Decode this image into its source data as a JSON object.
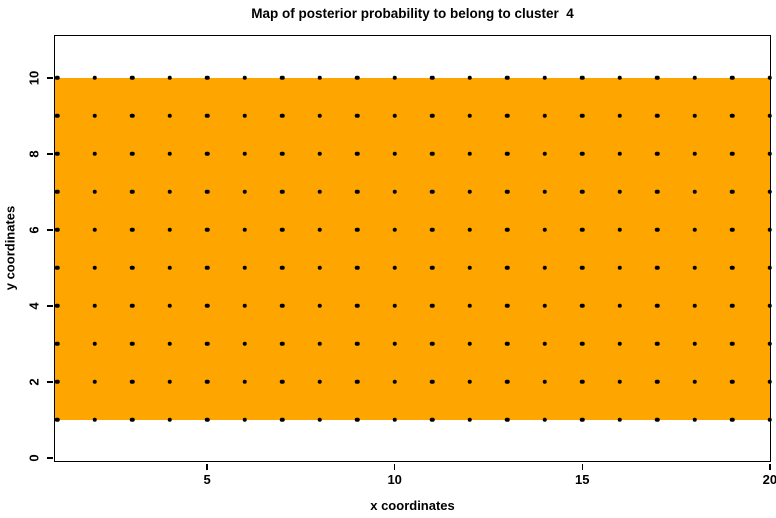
{
  "chart_data": {
    "type": "scatter",
    "title": "Map of posterior probability to belong to cluster  4",
    "xlabel": "x coordinates",
    "ylabel": "y coordinates",
    "x_ticks": [
      5,
      10,
      15,
      20
    ],
    "y_ticks": [
      0,
      2,
      4,
      6,
      8,
      10
    ],
    "xlim": [
      0.92,
      20.03
    ],
    "ylim": [
      -0.11,
      11.13
    ],
    "grid_points": {
      "x_values": [
        1,
        2,
        3,
        4,
        5,
        6,
        7,
        8,
        9,
        10,
        11,
        12,
        13,
        14,
        15,
        16,
        17,
        18,
        19,
        20
      ],
      "y_values": [
        1,
        2,
        3,
        4,
        5,
        6,
        7,
        8,
        9,
        10
      ],
      "pattern": "dot at every integer (x, y) combination",
      "point_color": "#000000"
    },
    "probability_region": {
      "y_range": [
        1,
        10
      ],
      "x_full_width": true,
      "color": "#FFA500"
    },
    "legend": "none",
    "grid": "off",
    "background_color": "#FFFFFF"
  }
}
